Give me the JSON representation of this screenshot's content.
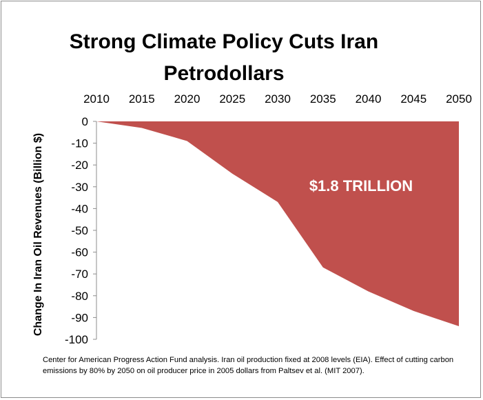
{
  "chart_data": {
    "type": "area",
    "title": "Strong Climate Policy Cuts Iran Petrodollars",
    "ylabel": "Change In Iran Oil Revenues (Billion $)",
    "xlabel": "",
    "x": [
      2010,
      2015,
      2020,
      2025,
      2030,
      2035,
      2040,
      2045,
      2050
    ],
    "values": [
      0,
      -3,
      -9,
      -24,
      -37,
      -67,
      -78,
      -87,
      -94
    ],
    "ylim": [
      -100,
      0
    ],
    "yticks": [
      0,
      -10,
      -20,
      -30,
      -40,
      -50,
      -60,
      -70,
      -80,
      -90,
      -100
    ],
    "x_axis_position": "top",
    "grid": false,
    "fill_color": "#c0504d",
    "annotation": "$1.8 TRILLION"
  },
  "footnote": "Center for American Progress Action Fund analysis. Iran oil production fixed at 2008 levels (EIA).  Effect of cutting carbon emissions by 80% by 2050 on oil producer price in 2005 dollars from Paltsev et al. (MIT 2007)."
}
